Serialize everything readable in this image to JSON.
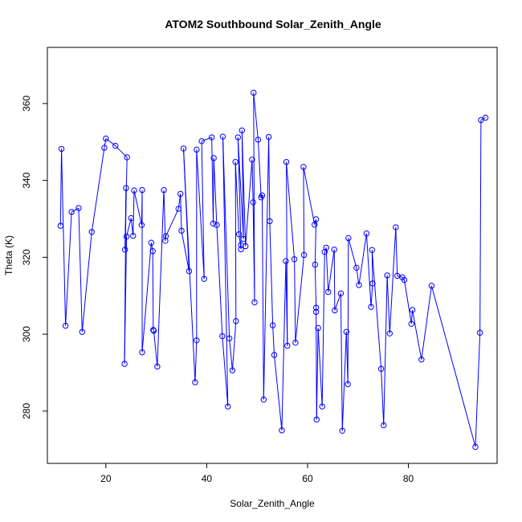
{
  "chart_data": {
    "type": "line",
    "title": "ATOM2 Southbound Solar_Zenith_Angle",
    "xlabel": "Solar_Zenith_Angle",
    "ylabel": "Theta (K)",
    "xlim": [
      8.4,
      97.6
    ],
    "ylim": [
      266.4,
      374.6
    ],
    "xticks": [
      20,
      40,
      60,
      80
    ],
    "yticks": [
      280,
      300,
      320,
      340,
      360
    ],
    "xtick_labels": [
      "20",
      "40",
      "60",
      "80"
    ],
    "ytick_labels": [
      "280",
      "300",
      "320",
      "340",
      "360"
    ],
    "grid": false,
    "legend": "none",
    "series_color": "#0000ff",
    "marker": "open-circle",
    "series": [
      {
        "name": "",
        "points": [
          [
            11.0,
            328.2
          ],
          [
            11.2,
            348.2
          ],
          [
            12.0,
            302.2
          ],
          [
            13.2,
            331.8
          ],
          [
            14.6,
            332.8
          ],
          [
            15.3,
            300.6
          ],
          [
            17.2,
            326.6
          ],
          [
            19.7,
            348.5
          ],
          [
            20.0,
            350.9
          ],
          [
            21.9,
            349.0
          ],
          [
            24.2,
            346.0
          ],
          [
            23.8,
            322.0
          ],
          [
            24.0,
            338.0
          ],
          [
            23.7,
            292.3
          ],
          [
            24.1,
            325.4
          ],
          [
            25.0,
            330.2
          ],
          [
            25.4,
            325.6
          ],
          [
            25.6,
            337.4
          ],
          [
            27.1,
            328.4
          ],
          [
            27.2,
            337.5
          ],
          [
            27.2,
            295.3
          ],
          [
            29.0,
            323.8
          ],
          [
            29.3,
            321.6
          ],
          [
            29.4,
            301.1
          ],
          [
            29.5,
            300.9
          ],
          [
            30.2,
            291.6
          ],
          [
            31.5,
            337.5
          ],
          [
            31.8,
            324.3
          ],
          [
            31.9,
            325.5
          ],
          [
            34.4,
            332.6
          ],
          [
            34.8,
            336.5
          ],
          [
            35.0,
            326.9
          ],
          [
            36.5,
            316.4
          ],
          [
            35.4,
            348.3
          ],
          [
            37.7,
            287.5
          ],
          [
            38.0,
            298.4
          ],
          [
            38.0,
            348.0
          ],
          [
            39.5,
            314.4
          ],
          [
            39.0,
            350.2
          ],
          [
            41.0,
            351.2
          ],
          [
            41.3,
            328.8
          ],
          [
            41.4,
            345.8
          ],
          [
            42.0,
            328.4
          ],
          [
            43.1,
            299.5
          ],
          [
            44.2,
            281.2
          ],
          [
            43.2,
            351.4
          ],
          [
            44.5,
            298.9
          ],
          [
            45.1,
            290.6
          ],
          [
            45.8,
            303.4
          ],
          [
            45.7,
            344.8
          ],
          [
            46.4,
            326.0
          ],
          [
            46.8,
            322.1
          ],
          [
            46.8,
            323.2
          ],
          [
            46.2,
            351.2
          ],
          [
            47.3,
            324.8
          ],
          [
            47.0,
            353.0
          ],
          [
            47.7,
            322.9
          ],
          [
            49.0,
            345.4
          ],
          [
            49.2,
            334.3
          ],
          [
            49.5,
            308.3
          ],
          [
            49.3,
            362.8
          ],
          [
            50.2,
            350.6
          ],
          [
            50.8,
            335.6
          ],
          [
            51.0,
            336.1
          ],
          [
            51.3,
            283.0
          ],
          [
            52.3,
            351.3
          ],
          [
            52.5,
            329.4
          ],
          [
            53.1,
            302.3
          ],
          [
            53.4,
            294.6
          ],
          [
            54.9,
            275.0
          ],
          [
            55.7,
            319.0
          ],
          [
            56.0,
            297.0
          ],
          [
            55.8,
            344.8
          ],
          [
            57.4,
            319.5
          ],
          [
            57.6,
            297.8
          ],
          [
            59.3,
            320.6
          ],
          [
            59.2,
            343.5
          ],
          [
            61.4,
            328.5
          ],
          [
            61.7,
            329.9
          ],
          [
            61.5,
            318.1
          ],
          [
            61.7,
            306.9
          ],
          [
            61.7,
            305.8
          ],
          [
            61.8,
            277.8
          ],
          [
            62.1,
            301.6
          ],
          [
            62.9,
            281.2
          ],
          [
            63.4,
            321.4
          ],
          [
            63.7,
            322.5
          ],
          [
            64.1,
            311.0
          ],
          [
            65.3,
            322.0
          ],
          [
            65.4,
            306.2
          ],
          [
            66.6,
            310.6
          ],
          [
            66.9,
            274.9
          ],
          [
            67.7,
            300.6
          ],
          [
            68.0,
            287.0
          ],
          [
            68.1,
            325.0
          ],
          [
            69.7,
            317.3
          ],
          [
            70.2,
            312.8
          ],
          [
            71.7,
            326.2
          ],
          [
            72.6,
            307.1
          ],
          [
            72.9,
            313.2
          ],
          [
            72.8,
            321.9
          ],
          [
            74.6,
            291.0
          ],
          [
            75.1,
            276.3
          ],
          [
            75.8,
            315.3
          ],
          [
            76.3,
            300.2
          ],
          [
            77.5,
            327.8
          ],
          [
            77.8,
            315.2
          ],
          [
            78.8,
            314.8
          ],
          [
            79.2,
            314.1
          ],
          [
            80.6,
            302.7
          ],
          [
            80.8,
            306.3
          ],
          [
            82.6,
            293.4
          ],
          [
            84.6,
            312.6
          ],
          [
            93.3,
            270.7
          ],
          [
            94.2,
            300.4
          ],
          [
            94.4,
            355.7
          ],
          [
            95.3,
            356.3
          ]
        ],
        "connections": [
          [
            0,
            1
          ],
          [
            1,
            2
          ],
          [
            2,
            3
          ],
          [
            3,
            4
          ],
          [
            4,
            5
          ],
          [
            5,
            6
          ],
          [
            6,
            7
          ],
          [
            7,
            8
          ],
          [
            8,
            9
          ],
          [
            9,
            10
          ],
          [
            10,
            11
          ],
          [
            11,
            12
          ],
          [
            12,
            13
          ],
          [
            13,
            14
          ],
          [
            14,
            15
          ],
          [
            15,
            16
          ],
          [
            16,
            17
          ],
          [
            17,
            18
          ],
          [
            18,
            19
          ],
          [
            19,
            20
          ],
          [
            20,
            21
          ],
          [
            21,
            22
          ],
          [
            22,
            23
          ],
          [
            23,
            24
          ],
          [
            24,
            25
          ],
          [
            25,
            26
          ],
          [
            26,
            27
          ],
          [
            27,
            28
          ],
          [
            28,
            29
          ],
          [
            29,
            30
          ],
          [
            30,
            31
          ],
          [
            31,
            32
          ],
          [
            32,
            33
          ],
          [
            33,
            34
          ],
          [
            34,
            35
          ],
          [
            35,
            36
          ],
          [
            36,
            37
          ],
          [
            37,
            38
          ],
          [
            38,
            39
          ],
          [
            39,
            40
          ],
          [
            40,
            41
          ],
          [
            41,
            42
          ],
          [
            42,
            43
          ],
          [
            43,
            44
          ],
          [
            44,
            45
          ],
          [
            45,
            46
          ],
          [
            46,
            47
          ],
          [
            47,
            48
          ],
          [
            48,
            49
          ],
          [
            49,
            50
          ],
          [
            50,
            51
          ],
          [
            51,
            52
          ],
          [
            52,
            53
          ],
          [
            53,
            54
          ],
          [
            54,
            55
          ],
          [
            55,
            56
          ],
          [
            56,
            57
          ],
          [
            57,
            58
          ],
          [
            58,
            59
          ],
          [
            59,
            60
          ],
          [
            60,
            61
          ],
          [
            61,
            62
          ],
          [
            62,
            63
          ],
          [
            63,
            64
          ],
          [
            64,
            65
          ],
          [
            65,
            66
          ],
          [
            66,
            67
          ],
          [
            67,
            68
          ],
          [
            68,
            69
          ],
          [
            69,
            70
          ],
          [
            70,
            71
          ],
          [
            71,
            72
          ],
          [
            72,
            73
          ],
          [
            73,
            74
          ],
          [
            74,
            75
          ],
          [
            75,
            76
          ],
          [
            76,
            77
          ],
          [
            77,
            78
          ],
          [
            78,
            79
          ],
          [
            79,
            80
          ],
          [
            80,
            81
          ],
          [
            81,
            82
          ],
          [
            82,
            83
          ],
          [
            83,
            84
          ],
          [
            84,
            85
          ],
          [
            85,
            86
          ],
          [
            86,
            87
          ],
          [
            87,
            88
          ],
          [
            88,
            89
          ],
          [
            89,
            90
          ],
          [
            90,
            91
          ],
          [
            91,
            92
          ],
          [
            92,
            93
          ],
          [
            93,
            94
          ],
          [
            94,
            95
          ],
          [
            95,
            96
          ],
          [
            96,
            97
          ],
          [
            97,
            98
          ],
          [
            98,
            99
          ],
          [
            99,
            100
          ],
          [
            100,
            101
          ],
          [
            101,
            102
          ],
          [
            102,
            103
          ],
          [
            103,
            104
          ],
          [
            104,
            105
          ],
          [
            105,
            106
          ],
          [
            106,
            107
          ],
          [
            107,
            108
          ],
          [
            108,
            109
          ],
          [
            109,
            110
          ],
          [
            110,
            111
          ],
          [
            111,
            112
          ],
          [
            112,
            113
          ],
          [
            113,
            114
          ],
          [
            114,
            115
          ],
          [
            115,
            116
          ]
        ]
      }
    ]
  }
}
